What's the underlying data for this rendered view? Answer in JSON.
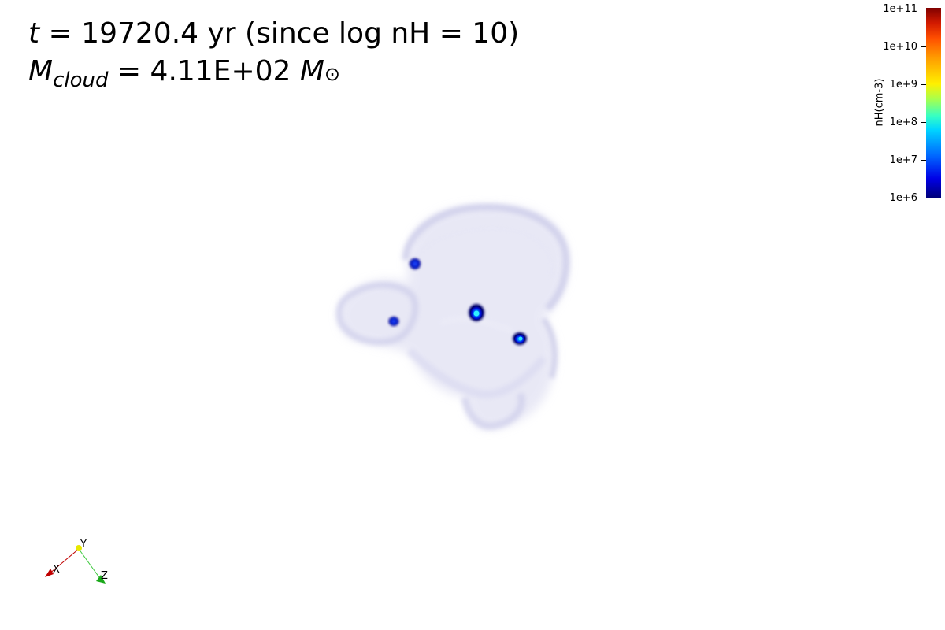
{
  "caption": {
    "time_symbol": "t",
    "time_rest": " = 19720.4 yr (since log nH = 10)",
    "mass_symbol": "M",
    "mass_subscript": "cloud",
    "mass_rest": " = 4.11E+02 ",
    "mass_unit_symbol": "M",
    "mass_unit_sub": "⊙"
  },
  "colorbar": {
    "title": "nH(cm-3)",
    "ticks": [
      "1e+11",
      "1e+10",
      "1e+9",
      "1e+8",
      "1e+7",
      "1e+6"
    ],
    "min": 1000000,
    "max": 100000000000,
    "scale": "log",
    "colormap": "jet"
  },
  "axes_widget": {
    "x_label": "X",
    "y_label": "Y",
    "z_label": "Z",
    "x_color": "#b80000",
    "y_color": "#e8e800",
    "z_color": "#1aa81a"
  },
  "scene": {
    "cloud_color": "#dcdcf0",
    "core_colors": [
      "#00008b",
      "#0000ff",
      "#00c8ff"
    ],
    "core_count": 4
  }
}
